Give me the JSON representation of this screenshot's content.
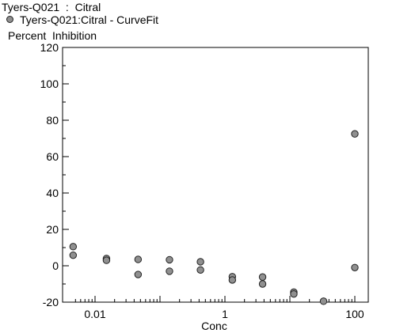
{
  "header": {
    "title": "Tyers-Q021  :  Citral",
    "legend_label": "Tyers-Q021:Citral - CurveFit"
  },
  "chart_data": {
    "type": "scatter",
    "title": "Tyers-Q021  :  Citral",
    "ylabel": "Percent  Inhibition",
    "xlabel": "Conc",
    "xscale": "log",
    "xlim": [
      0.0045,
      180
    ],
    "ylim": [
      -20,
      120
    ],
    "yticks": [
      -20,
      0,
      20,
      40,
      60,
      80,
      100,
      120
    ],
    "xticks": [
      0.01,
      1,
      100
    ],
    "xtick_labels": [
      "0.01",
      "1",
      "100"
    ],
    "legend": "top-left",
    "grid": false,
    "marker_color": "#909090",
    "series": [
      {
        "name": "Tyers-Q021:Citral - CurveFit",
        "points": [
          {
            "x": 0.0046,
            "y": 10.5
          },
          {
            "x": 0.0046,
            "y": 5.8
          },
          {
            "x": 0.015,
            "y": 4.0
          },
          {
            "x": 0.015,
            "y": 3.0
          },
          {
            "x": 0.046,
            "y": 3.5
          },
          {
            "x": 0.046,
            "y": -4.8
          },
          {
            "x": 0.14,
            "y": 3.3
          },
          {
            "x": 0.14,
            "y": -3.0
          },
          {
            "x": 0.42,
            "y": 2.2
          },
          {
            "x": 0.42,
            "y": -2.3
          },
          {
            "x": 1.3,
            "y": -6.0
          },
          {
            "x": 1.3,
            "y": -7.8
          },
          {
            "x": 3.8,
            "y": -6.2
          },
          {
            "x": 3.8,
            "y": -10.0
          },
          {
            "x": 11.5,
            "y": -14.5
          },
          {
            "x": 11.5,
            "y": -15.5
          },
          {
            "x": 33,
            "y": -19.5
          },
          {
            "x": 100,
            "y": 72.5
          },
          {
            "x": 100,
            "y": -1.0
          }
        ]
      }
    ]
  }
}
